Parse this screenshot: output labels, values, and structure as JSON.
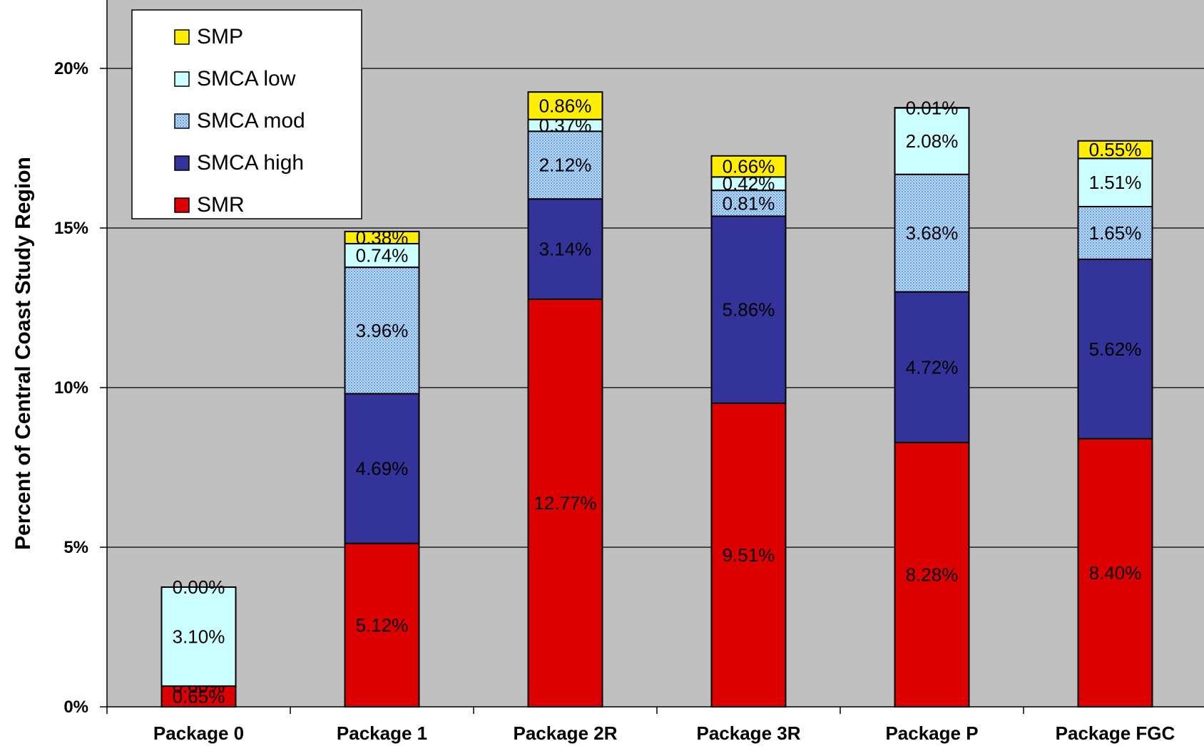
{
  "chart_data": {
    "type": "bar",
    "stacked": true,
    "categories": [
      "Package 0",
      "Package 1",
      "Package 2R",
      "Package 3R",
      "Package P",
      "Package FGC"
    ],
    "ylabel": "Percent of Central Coast Study Region",
    "xlabel": "",
    "ylim": [
      0,
      22
    ],
    "yticks": [
      0,
      5,
      10,
      15,
      20
    ],
    "ytick_labels": [
      "0%",
      "5%",
      "10%",
      "15%",
      "20%"
    ],
    "grid": "horizontal",
    "legend_position": "top-left",
    "legend_order": [
      "SMP",
      "SMCA low",
      "SMCA mod",
      "SMCA high",
      "SMR"
    ],
    "series": [
      {
        "name": "SMR",
        "color": "#dd0000",
        "pattern": false,
        "values": [
          0.65,
          5.12,
          12.77,
          9.51,
          8.28,
          8.4
        ],
        "labels": [
          "0.65%",
          "5.12%",
          "12.77%",
          "9.51%",
          "8.28%",
          "8.40%"
        ]
      },
      {
        "name": "SMCA high",
        "color": "#333399",
        "pattern": false,
        "values": [
          0.0,
          4.69,
          3.14,
          5.86,
          4.72,
          5.62
        ],
        "labels": [
          "0.00%",
          "4.69%",
          "3.14%",
          "5.86%",
          "4.72%",
          "5.62%"
        ]
      },
      {
        "name": "SMCA mod",
        "color": "#99ccff",
        "pattern": true,
        "values": [
          0.0,
          3.96,
          2.12,
          0.81,
          3.68,
          1.65
        ],
        "labels": [
          "",
          "3.96%",
          "2.12%",
          "0.81%",
          "3.68%",
          "1.65%"
        ]
      },
      {
        "name": "SMCA low",
        "color": "#ccffff",
        "pattern": false,
        "values": [
          3.1,
          0.74,
          0.37,
          0.42,
          2.08,
          1.51
        ],
        "labels": [
          "3.10%",
          "0.74%",
          "0.37%",
          "0.42%",
          "2.08%",
          "1.51%"
        ]
      },
      {
        "name": "SMP",
        "color": "#ffee00",
        "pattern": false,
        "values": [
          0.0,
          0.38,
          0.86,
          0.66,
          0.01,
          0.55
        ],
        "labels": [
          "0.00%",
          "0.38%",
          "0.86%",
          "0.66%",
          "0.01%",
          "0.55%"
        ]
      }
    ]
  }
}
